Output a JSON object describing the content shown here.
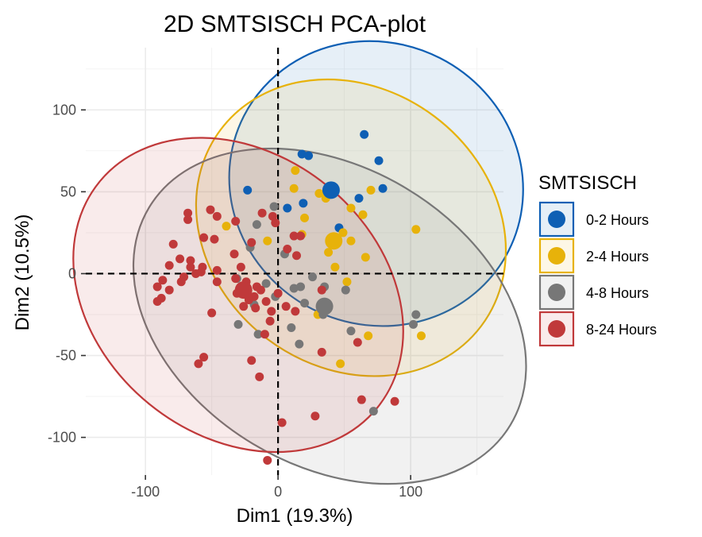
{
  "chart_data": {
    "type": "scatter",
    "title": "2D SMTSISCH PCA-plot",
    "xlabel": "Dim1 (19.3%)",
    "ylabel": "Dim2 (10.5%)",
    "xlim": [
      -145,
      170
    ],
    "ylim": [
      -123,
      138
    ],
    "xticks": [
      -100,
      0,
      100
    ],
    "yticks": [
      -100,
      -50,
      0,
      50,
      100
    ],
    "grid": true,
    "legend": {
      "title": "SMTSISCH",
      "position": "right"
    },
    "series": [
      {
        "name": "0-2 Hours",
        "color": "#0e5fb4",
        "centroid": [
          40,
          51
        ],
        "ellipse": {
          "cx": 74,
          "cy": 55,
          "rx": 112,
          "ry": 86,
          "angle": -27
        },
        "points": [
          [
            65,
            85
          ],
          [
            18,
            73
          ],
          [
            23,
            72
          ],
          [
            76,
            69
          ],
          [
            79,
            52
          ],
          [
            -23,
            51
          ],
          [
            61,
            46
          ],
          [
            19,
            43
          ],
          [
            46,
            28
          ],
          [
            7,
            40
          ]
        ]
      },
      {
        "name": "2-4 Hours",
        "color": "#e7b20a",
        "centroid": [
          42,
          20
        ],
        "ellipse": {
          "cx": 55,
          "cy": 28,
          "rx": 123,
          "ry": 85,
          "angle": -37
        },
        "points": [
          [
            13,
            63
          ],
          [
            70,
            51
          ],
          [
            31,
            49
          ],
          [
            12,
            52
          ],
          [
            55,
            40
          ],
          [
            36,
            46
          ],
          [
            -39,
            29
          ],
          [
            20,
            34
          ],
          [
            55,
            20
          ],
          [
            64,
            36
          ],
          [
            49,
            25
          ],
          [
            38,
            13
          ],
          [
            66,
            10
          ],
          [
            104,
            27
          ],
          [
            43,
            4
          ],
          [
            52,
            -5
          ],
          [
            18,
            24
          ],
          [
            -8,
            20
          ],
          [
            30,
            -25
          ],
          [
            68,
            -38
          ],
          [
            108,
            -38
          ],
          [
            47,
            -55
          ]
        ]
      },
      {
        "name": "4-8 Hours",
        "color": "#777777",
        "centroid": [
          35,
          -20
        ],
        "ellipse": {
          "cx": 39,
          "cy": -26,
          "rx": 159,
          "ry": 91,
          "angle": -31
        },
        "points": [
          [
            -3,
            41
          ],
          [
            -16,
            30
          ],
          [
            -21,
            16
          ],
          [
            5,
            12
          ],
          [
            -9,
            -6
          ],
          [
            17,
            -8
          ],
          [
            26,
            -2
          ],
          [
            -31,
            -3
          ],
          [
            12,
            -9
          ],
          [
            -2,
            -14
          ],
          [
            35,
            -8
          ],
          [
            51,
            -10
          ],
          [
            -27,
            -11
          ],
          [
            20,
            -18
          ],
          [
            -18,
            -19
          ],
          [
            34,
            -25
          ],
          [
            10,
            -33
          ],
          [
            55,
            -35
          ],
          [
            -30,
            -31
          ],
          [
            102,
            -31
          ],
          [
            -15,
            -37
          ],
          [
            104,
            -25
          ],
          [
            16,
            -43
          ],
          [
            72,
            -84
          ]
        ]
      },
      {
        "name": "8-24 Hours",
        "color": "#c0393a",
        "centroid": [
          -26,
          -10
        ],
        "ellipse": {
          "cx": -30,
          "cy": -13,
          "rx": 135,
          "ry": 86,
          "angle": -39
        },
        "points": [
          [
            -68,
            37
          ],
          [
            -51,
            39
          ],
          [
            -46,
            35
          ],
          [
            -68,
            33
          ],
          [
            -32,
            32
          ],
          [
            -4,
            35
          ],
          [
            -12,
            37
          ],
          [
            -2,
            31
          ],
          [
            -56,
            22
          ],
          [
            -48,
            21
          ],
          [
            -79,
            18
          ],
          [
            -20,
            19
          ],
          [
            12,
            23
          ],
          [
            17,
            23
          ],
          [
            -33,
            12
          ],
          [
            7,
            15
          ],
          [
            -74,
            9
          ],
          [
            -66,
            8
          ],
          [
            -57,
            4
          ],
          [
            -66,
            4
          ],
          [
            -58,
            1
          ],
          [
            -46,
            2
          ],
          [
            -28,
            4
          ],
          [
            14,
            11
          ],
          [
            -82,
            5
          ],
          [
            -62,
            0
          ],
          [
            -87,
            -4
          ],
          [
            -73,
            -5
          ],
          [
            -46,
            -5
          ],
          [
            -32,
            -3
          ],
          [
            -24,
            -5
          ],
          [
            -71,
            -2
          ],
          [
            -91,
            -8
          ],
          [
            -82,
            -10
          ],
          [
            -16,
            -8
          ],
          [
            -13,
            -10
          ],
          [
            -31,
            -12
          ],
          [
            -18,
            -14
          ],
          [
            0,
            -12
          ],
          [
            -22,
            -16
          ],
          [
            -9,
            -17
          ],
          [
            6,
            -20
          ],
          [
            -17,
            -21
          ],
          [
            -88,
            -15
          ],
          [
            -26,
            -20
          ],
          [
            -50,
            -24
          ],
          [
            -91,
            -17
          ],
          [
            -5,
            -23
          ],
          [
            33,
            -10
          ],
          [
            13,
            -23
          ],
          [
            -6,
            -29
          ],
          [
            -10,
            -37
          ],
          [
            60,
            -42
          ],
          [
            -20,
            -53
          ],
          [
            -56,
            -51
          ],
          [
            -60,
            -55
          ],
          [
            -14,
            -63
          ],
          [
            33,
            -48
          ],
          [
            63,
            -77
          ],
          [
            88,
            -78
          ],
          [
            28,
            -87
          ],
          [
            3,
            -91
          ],
          [
            -8,
            -114
          ]
        ]
      }
    ]
  }
}
